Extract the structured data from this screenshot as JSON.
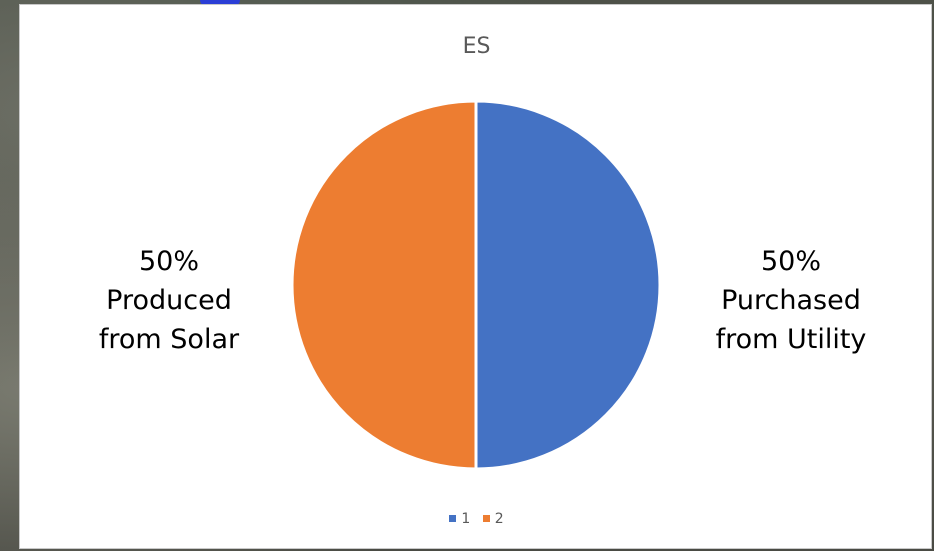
{
  "chart_data": {
    "type": "pie",
    "title": "ES",
    "slices": [
      {
        "legend": "1",
        "value": 50,
        "color": "#4472c4",
        "label_lines": [
          "50%",
          "Purchased",
          "from Utility"
        ]
      },
      {
        "legend": "2",
        "value": 50,
        "color": "#ed7d31",
        "label_lines": [
          "50%",
          "Produced",
          "from Solar"
        ]
      }
    ],
    "legend_position": "bottom"
  }
}
